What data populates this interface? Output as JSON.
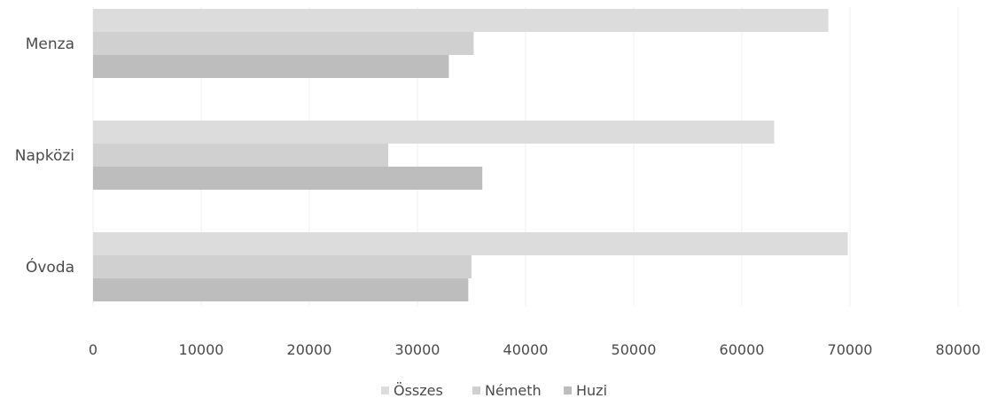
{
  "chart_data": {
    "type": "bar",
    "orientation": "horizontal",
    "categories": [
      "Menza",
      "Napközi",
      "Óvoda"
    ],
    "series": [
      {
        "name": "Összes",
        "values": [
          68000,
          63000,
          69800
        ],
        "color": "#dcdcdc"
      },
      {
        "name": "Németh",
        "values": [
          35200,
          27300,
          35000
        ],
        "color": "#d0d0d0"
      },
      {
        "name": "Huzi",
        "values": [
          32900,
          36000,
          34700
        ],
        "color": "#bdbdbd"
      }
    ],
    "xlim": [
      0,
      80000
    ],
    "x_ticks": [
      "0",
      "10000",
      "20000",
      "30000",
      "40000",
      "50000",
      "60000",
      "70000",
      "80000"
    ],
    "grid": "vertical",
    "legend_position": "bottom"
  }
}
